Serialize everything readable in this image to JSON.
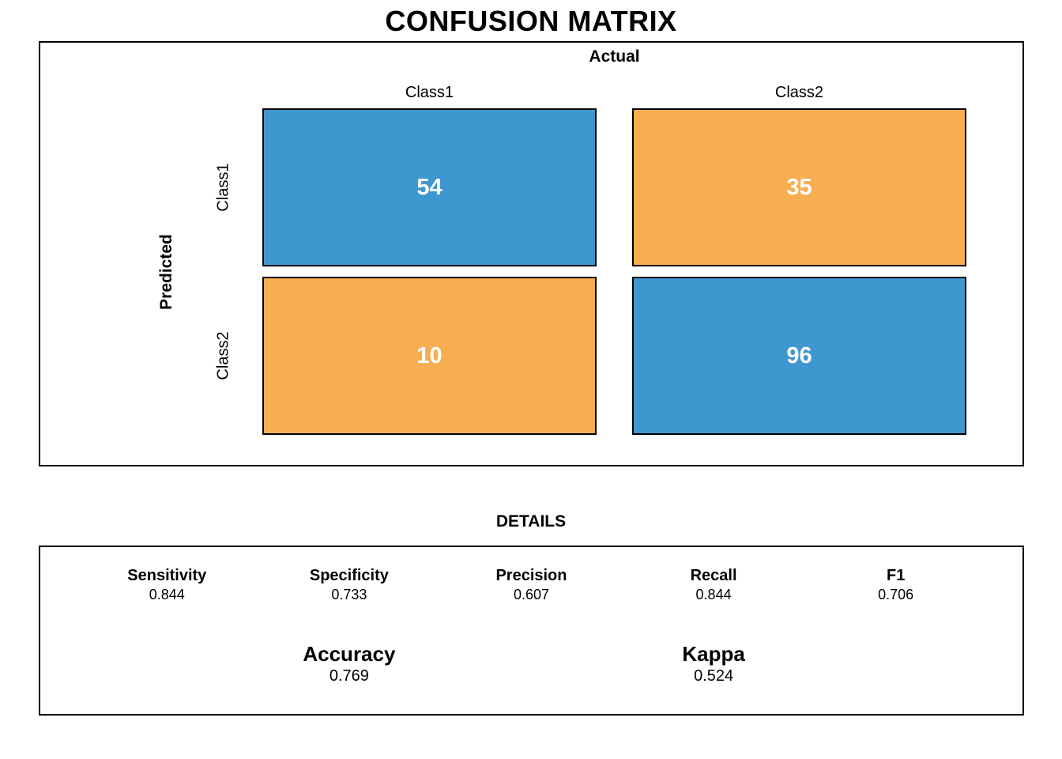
{
  "title": "CONFUSION MATRIX",
  "matrix": {
    "axis_top_label": "Actual",
    "axis_left_label": "Predicted",
    "col_labels": [
      "Class1",
      "Class2"
    ],
    "row_labels": [
      "Class1",
      "Class2"
    ],
    "cells": [
      {
        "value": "54",
        "color": "#3F97D0"
      },
      {
        "value": "35",
        "color": "#F7AD50"
      },
      {
        "value": "10",
        "color": "#F7AD50"
      },
      {
        "value": "96",
        "color": "#3F97D0"
      }
    ]
  },
  "details": {
    "heading": "DETAILS",
    "metrics_row1": [
      {
        "label": "Sensitivity",
        "value": "0.844"
      },
      {
        "label": "Specificity",
        "value": "0.733"
      },
      {
        "label": "Precision",
        "value": "0.607"
      },
      {
        "label": "Recall",
        "value": "0.844"
      },
      {
        "label": "F1",
        "value": "0.706"
      }
    ],
    "metrics_row2": [
      {
        "label": "Accuracy",
        "value": "0.769"
      },
      {
        "label": "Kappa",
        "value": "0.524"
      }
    ]
  },
  "chart_data": {
    "type": "heatmap",
    "title": "CONFUSION MATRIX",
    "xlabel": "Actual",
    "ylabel": "Predicted",
    "x_categories": [
      "Class1",
      "Class2"
    ],
    "y_categories": [
      "Class1",
      "Class2"
    ],
    "matrix": [
      [
        54,
        35
      ],
      [
        10,
        96
      ]
    ],
    "cell_colors": [
      [
        "#3F97D0",
        "#F7AD50"
      ],
      [
        "#F7AD50",
        "#3F97D0"
      ]
    ],
    "metrics": {
      "Sensitivity": 0.844,
      "Specificity": 0.733,
      "Precision": 0.607,
      "Recall": 0.844,
      "F1": 0.706,
      "Accuracy": 0.769,
      "Kappa": 0.524
    },
    "legend_position": "none",
    "grid": false
  }
}
